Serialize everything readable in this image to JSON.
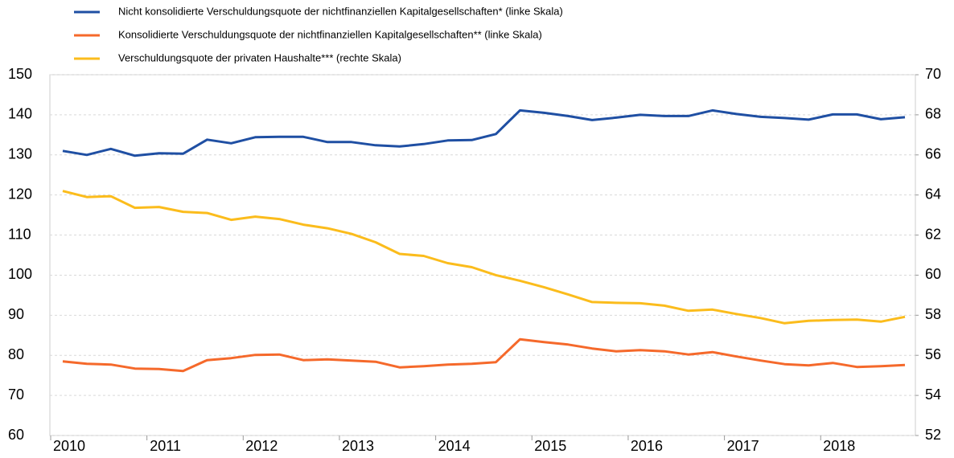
{
  "chart_data": {
    "type": "line",
    "categories": [
      "2010",
      null,
      null,
      null,
      "2011",
      null,
      null,
      null,
      "2012",
      null,
      null,
      null,
      "2013",
      null,
      null,
      null,
      "2014",
      null,
      null,
      null,
      "2015",
      null,
      null,
      null,
      "2016",
      null,
      null,
      null,
      "2017",
      null,
      null,
      null,
      "2018",
      null,
      null,
      null
    ],
    "series": [
      {
        "name": "Nicht konsolidierte Verschuldungsquote der nichtfinanziellen Kapitalgesellschaften* (linke Skala)",
        "color": "#1f4fa3",
        "axis": "y",
        "values": [
          131,
          130,
          131.5,
          129.8,
          130.4,
          130.3,
          133.8,
          132.9,
          134.4,
          134.5,
          134.5,
          133.2,
          133.2,
          132.4,
          132.1,
          132.7,
          133.6,
          133.7,
          135.2,
          141.1,
          140.5,
          139.7,
          138.7,
          139.3,
          140,
          139.7,
          139.7,
          141.1,
          140.2,
          139.5,
          139.2,
          138.8,
          140.1,
          140.1,
          138.9,
          139.4
        ]
      },
      {
        "name": "Konsolidierte Verschuldungsquote der nichtfinanziellen Kapitalgesellschaften** (linke Skala)",
        "color": "#f5692b",
        "axis": "y",
        "values": [
          78.5,
          77.9,
          77.7,
          76.7,
          76.6,
          76.1,
          78.8,
          79.3,
          80.1,
          80.2,
          78.8,
          79,
          78.7,
          78.4,
          77,
          77.3,
          77.7,
          77.9,
          78.3,
          84,
          83.3,
          82.7,
          81.7,
          81,
          81.3,
          81,
          80.2,
          80.8,
          79.7,
          78.7,
          77.8,
          77.5,
          78.1,
          77.1,
          77.3,
          77.6
        ]
      },
      {
        "name": "Verschuldungsquote der privaten Haushalte*** (rechte Skala)",
        "color": "#fbbc1c",
        "axis": "y2",
        "values": [
          64.2,
          63.9,
          63.94,
          63.36,
          63.4,
          63.16,
          63.1,
          62.76,
          62.92,
          62.8,
          62.52,
          62.34,
          62.06,
          61.64,
          61.06,
          60.96,
          60.6,
          60.4,
          60,
          59.72,
          59.4,
          59.04,
          58.66,
          58.62,
          58.6,
          58.48,
          58.22,
          58.28,
          58.06,
          57.86,
          57.6,
          57.72,
          57.76,
          57.78,
          57.68,
          57.92
        ]
      }
    ],
    "ylim": [
      60,
      150
    ],
    "yticks": [
      60,
      70,
      80,
      90,
      100,
      110,
      120,
      130,
      140,
      150
    ],
    "y2lim": [
      52,
      70
    ],
    "y2ticks": [
      52,
      54,
      56,
      58,
      60,
      62,
      64,
      66,
      68,
      70
    ],
    "grid": true,
    "legend": "top-left"
  }
}
